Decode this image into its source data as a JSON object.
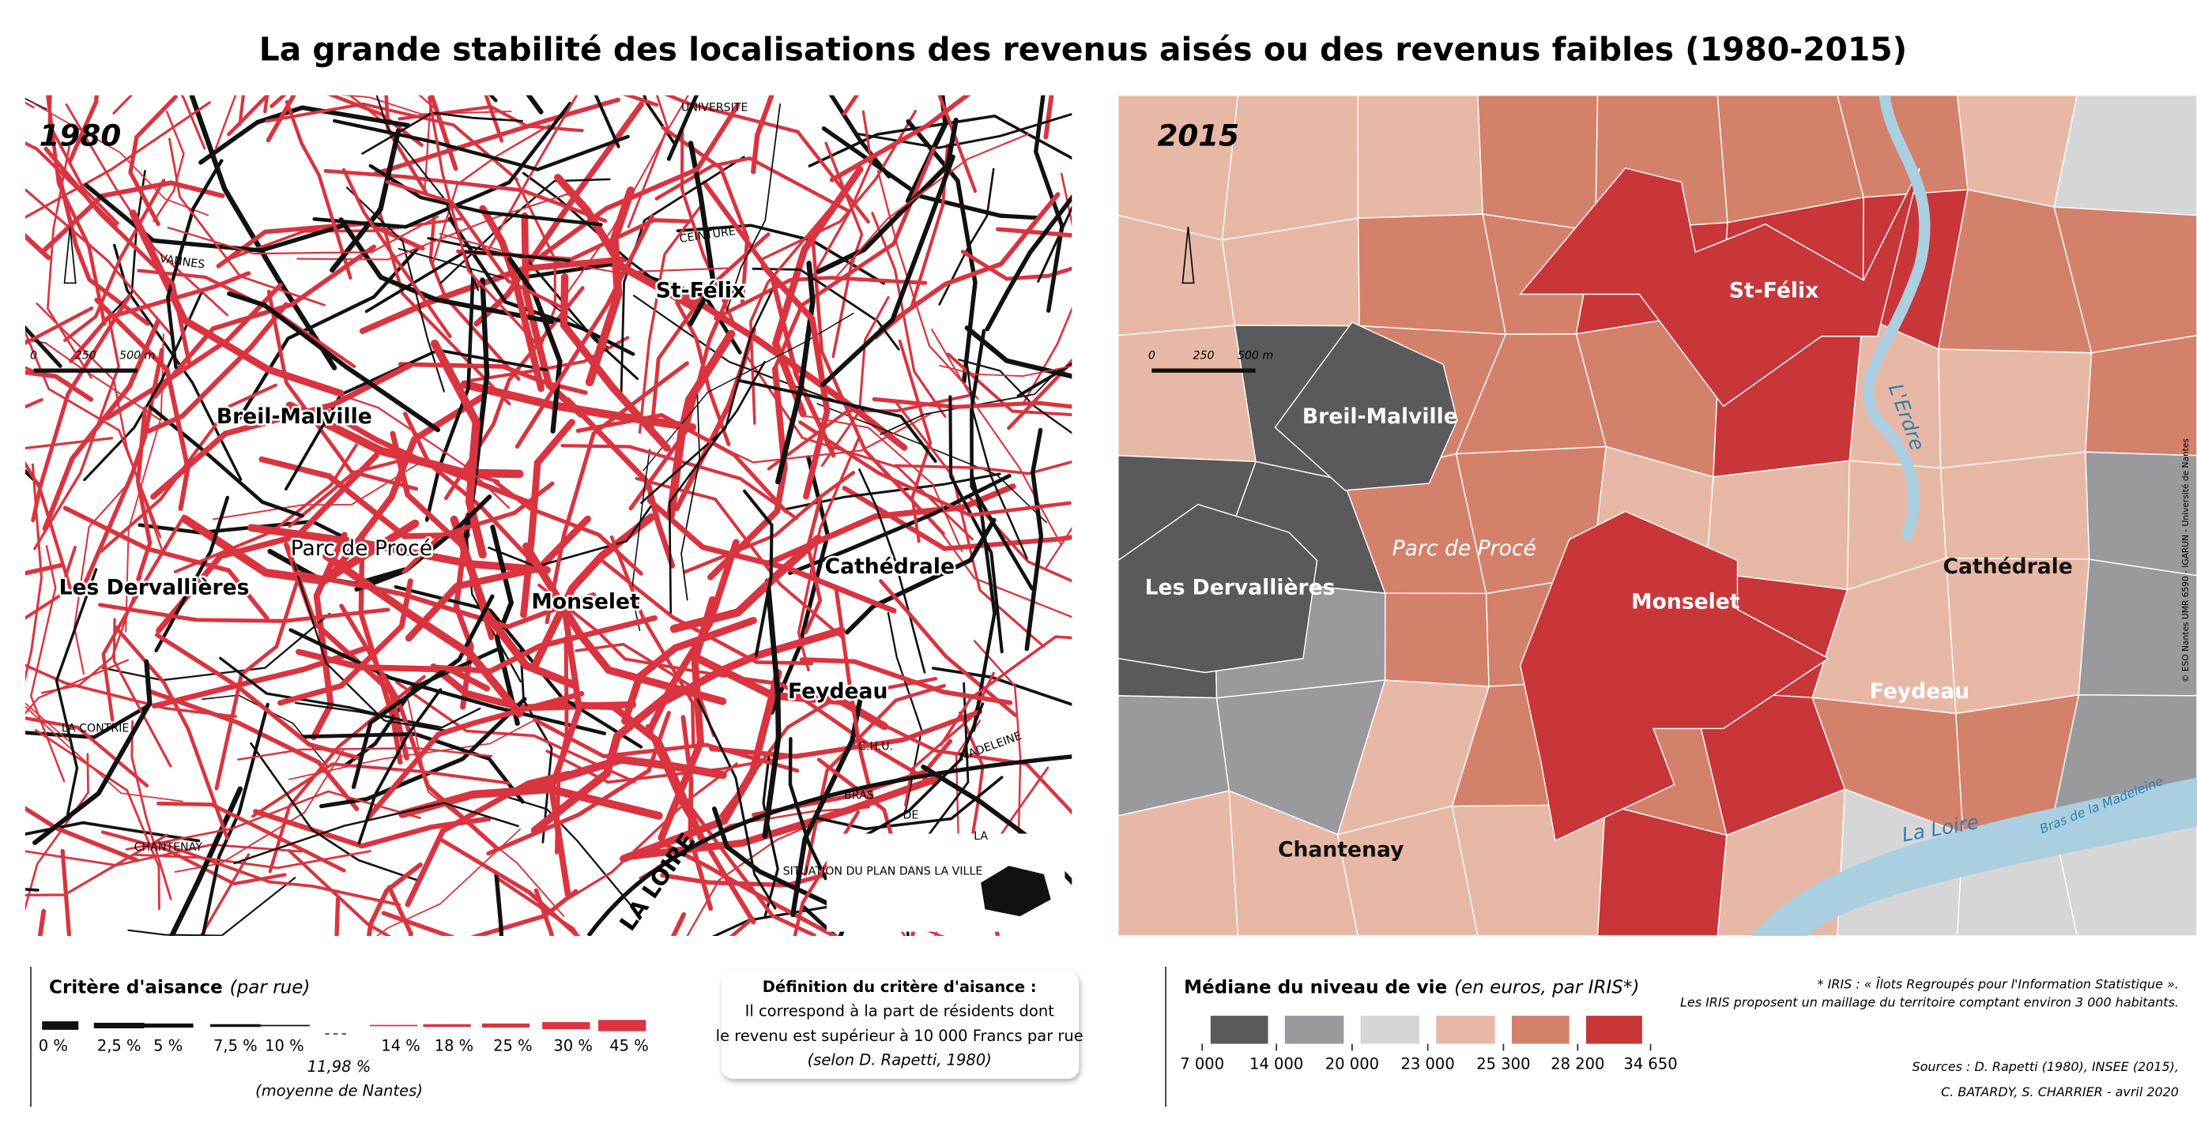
{
  "header": {
    "title": "La grande stabilité des localisations des revenus aisés ou des revenus faibles (1980-2015)"
  },
  "map_1980": {
    "year": "1980",
    "places": [
      "St-Félix",
      "Breil-Malville",
      "Parc de Procé",
      "Monselet",
      "Les Dervallières",
      "Cathédrale",
      "Feydeau"
    ],
    "streets": [
      "CHANTENAY",
      "LA LOIRE",
      "CEINTURE",
      "UNIVERSITE",
      "VANNES",
      "LA CONTRIE",
      "BRAS",
      "DE",
      "LA",
      "MADELEINE",
      "C.H.U.",
      "SITUATION DU PLAN DANS LA VILLE"
    ],
    "scale": [
      "0",
      "250",
      "500 m"
    ]
  },
  "map_2015": {
    "year": "2015",
    "places": [
      "St-Félix",
      "Breil-Malville",
      "Parc de Procé",
      "Monselet",
      "Les Dervallières",
      "Cathédrale",
      "Feydeau",
      "Chantenay"
    ],
    "rivers": [
      "L'Erdre",
      "La Loire",
      "Bras de la Madeleine"
    ],
    "scale": [
      "0",
      "250",
      "500 m"
    ],
    "credit": "© ESO Nantes UMR 6590 - IGARUN - Université de Nantes"
  },
  "legend_1980": {
    "title": "Critère d'aisance",
    "unit": "(par rue)",
    "low_labels": [
      "0 %",
      "2,5 %",
      "5 %",
      "7,5 %",
      "10 %"
    ],
    "high_labels": [
      "14 %",
      "18 %",
      "25 %",
      "30 %",
      "45 %"
    ],
    "mean": "11,98 %",
    "mean_note": "(moyenne de Nantes)",
    "low_color": "#111111",
    "high_color": "#d9343f"
  },
  "definition": {
    "title": "Définition du critère d'aisance :",
    "lines": [
      "Il correspond à la part de résidents dont",
      "le revenu est supérieur à 10 000 Francs par rue",
      "(selon D. Rapetti, 1980)"
    ]
  },
  "legend_2015": {
    "title": "Médiane du niveau de vie",
    "unit": "(en euros, par IRIS*)",
    "breaks": [
      "7 000",
      "14 000",
      "20 000",
      "23 000",
      "25 300",
      "28 200",
      "34 650"
    ],
    "colors": [
      "#5a5a5c",
      "#9a9a9e",
      "#d6d6d8",
      "#e8b8a6",
      "#d4816b",
      "#c8363a"
    ]
  },
  "notes": {
    "lines": [
      "* IRIS : « Îlots Regroupés pour l'Information Statistique ».",
      "Les IRIS proposent un maillage du territoire comptant environ 3 000 habitants."
    ],
    "sources": "Sources : D. Rapetti (1980), INSEE (2015),",
    "authors": "C. BATARDY, S. CHARRIER - avril 2020"
  }
}
